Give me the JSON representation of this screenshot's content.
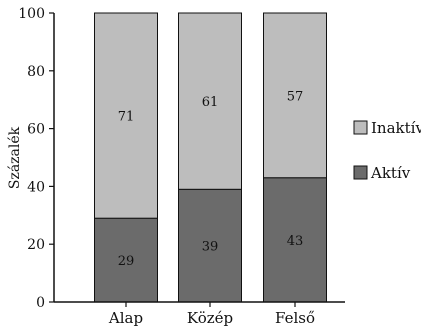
{
  "chart_data": {
    "type": "bar",
    "stacked": true,
    "categories": [
      "Alap",
      "Közép",
      "Felső"
    ],
    "series": [
      {
        "name": "Aktív",
        "values": [
          29,
          39,
          43
        ],
        "color": "#6b6b6b"
      },
      {
        "name": "Inaktív",
        "values": [
          71,
          61,
          57
        ],
        "color": "#bdbdbd"
      }
    ],
    "ylabel": "Százalék",
    "ylim": [
      0,
      100
    ],
    "yticks": [
      0,
      20,
      40,
      60,
      80,
      100
    ],
    "grid": false,
    "legend": "right"
  }
}
